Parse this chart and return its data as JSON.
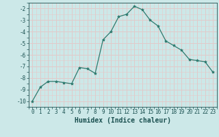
{
  "x": [
    0,
    1,
    2,
    3,
    4,
    5,
    6,
    7,
    8,
    9,
    10,
    11,
    12,
    13,
    14,
    15,
    16,
    17,
    18,
    19,
    20,
    21,
    22,
    23
  ],
  "y": [
    -10.0,
    -8.8,
    -8.3,
    -8.3,
    -8.4,
    -8.5,
    -7.1,
    -7.2,
    -7.6,
    -4.7,
    -4.0,
    -2.7,
    -2.5,
    -1.8,
    -2.1,
    -3.0,
    -3.5,
    -4.8,
    -5.2,
    -5.6,
    -6.4,
    -6.5,
    -6.6,
    -7.5
  ],
  "xlabel": "Humidex (Indice chaleur)",
  "xlim": [
    -0.5,
    23.5
  ],
  "ylim": [
    -10.5,
    -1.5
  ],
  "yticks": [
    -10,
    -9,
    -8,
    -7,
    -6,
    -5,
    -4,
    -3,
    -2
  ],
  "xticks": [
    0,
    1,
    2,
    3,
    4,
    5,
    6,
    7,
    8,
    9,
    10,
    11,
    12,
    13,
    14,
    15,
    16,
    17,
    18,
    19,
    20,
    21,
    22,
    23
  ],
  "line_color": "#2d7a6e",
  "marker": "*",
  "marker_size": 3,
  "bg_color": "#cce8e8",
  "major_grid_color": "#e8c8c8",
  "minor_grid_color": "#e8c8c8",
  "teal_grid_color": "#a8cece",
  "font_color": "#1a5050",
  "tick_fontsize": 5.5,
  "label_fontsize": 7.0
}
